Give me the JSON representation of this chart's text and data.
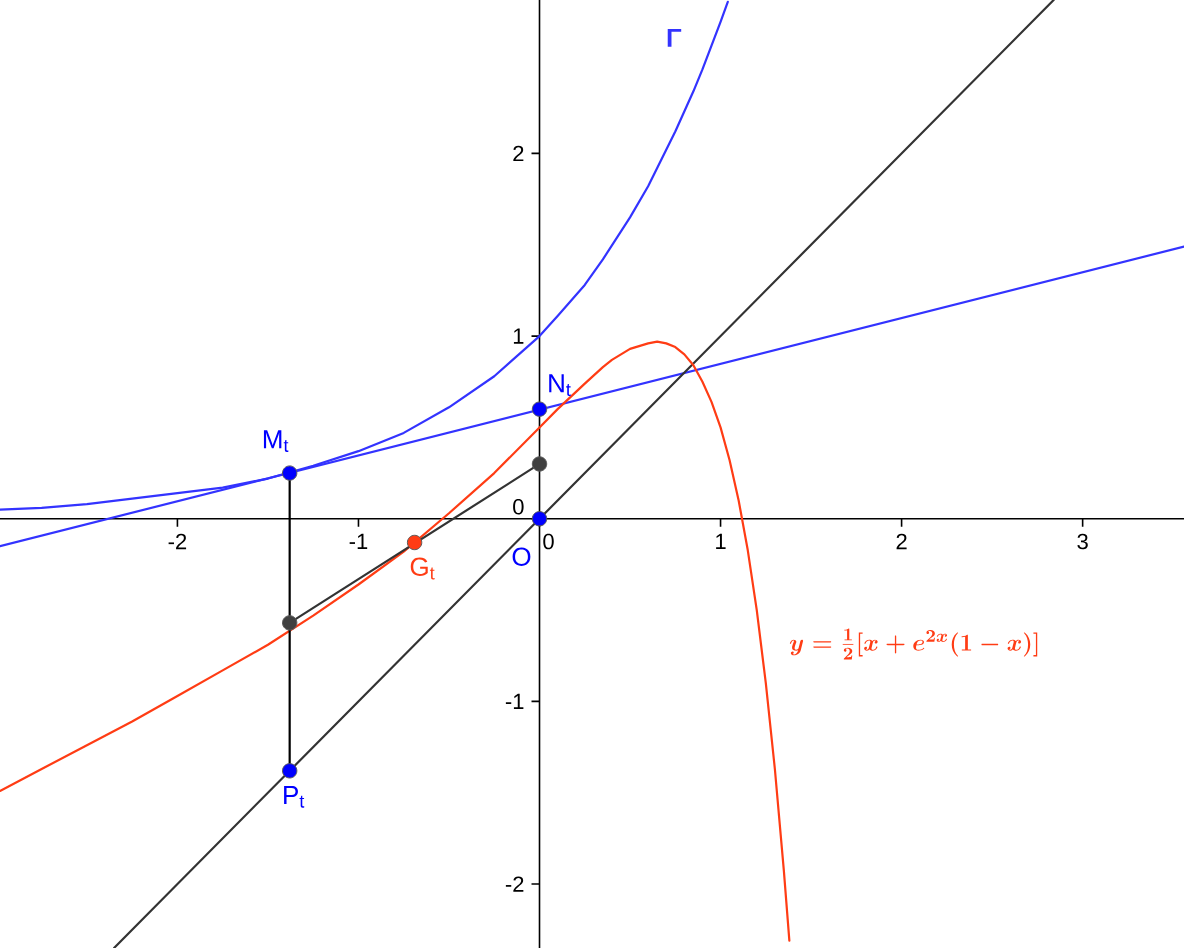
{
  "chart_data": {
    "type": "line",
    "xlim": [
      -2.98,
      3.56
    ],
    "ylim": [
      -2.35,
      2.84
    ],
    "xticks": [
      -2,
      -1,
      0,
      1,
      2,
      3
    ],
    "yticks": [
      -2,
      -1,
      0,
      1,
      2
    ],
    "marker": "none",
    "series": [
      {
        "name": "Γ",
        "color": "#3333ff",
        "x": [
          -2.98,
          -2.75,
          -2.5,
          -2.25,
          -2,
          -1.75,
          -1.5,
          -1.25,
          -1,
          -0.75,
          -0.5,
          -0.25,
          0,
          0.1,
          0.25,
          0.35,
          0.5,
          0.6,
          0.65,
          0.75,
          0.85,
          0.9,
          0.95,
          1,
          1.04
        ],
        "values": [
          0.05,
          0.06,
          0.08,
          0.11,
          0.14,
          0.17,
          0.22,
          0.29,
          0.37,
          0.47,
          0.61,
          0.78,
          1,
          1.11,
          1.28,
          1.42,
          1.65,
          1.82,
          1.92,
          2.12,
          2.34,
          2.46,
          2.59,
          2.72,
          2.83
        ]
      },
      {
        "color": "#3333ff",
        "x": [
          -2.98,
          3.56
        ],
        "values": [
          -0.15,
          1.49
        ]
      },
      {
        "color": "#333333",
        "x": [
          -2.35,
          2.84
        ],
        "values": [
          -2.35,
          2.84
        ]
      },
      {
        "name": "y=\\frac{1}{2}[x+e^{2x}(1-x)]",
        "color": "#ff3c14",
        "x": [
          -2.98,
          -2.75,
          -2.5,
          -2.25,
          -2,
          -1.75,
          -1.5,
          -1.25,
          -1,
          -0.75,
          -0.5,
          -0.25,
          0,
          0.1,
          0.25,
          0.35,
          0.4,
          0.5,
          0.6,
          0.65,
          0.7,
          0.75,
          0.8,
          0.85,
          0.9,
          0.95,
          1,
          1.05,
          1.1,
          1.15,
          1.2,
          1.25,
          1.3,
          1.35,
          1.38
        ],
        "values": [
          -1.49,
          -1.37,
          -1.24,
          -1.11,
          -0.97,
          -0.83,
          -0.69,
          -0.53,
          -0.36,
          -0.18,
          0.03,
          0.25,
          0.5,
          0.6,
          0.74,
          0.83,
          0.87,
          0.93,
          0.96,
          0.97,
          0.96,
          0.94,
          0.9,
          0.84,
          0.75,
          0.64,
          0.5,
          0.32,
          0.1,
          -0.17,
          -0.5,
          -0.9,
          -1.37,
          -1.93,
          -2.31
        ]
      },
      {
        "color": "#000000",
        "x": [
          -1.38,
          -1.38
        ],
        "values": [
          0.25,
          -1.38
        ]
      },
      {
        "color": "#333333",
        "x": [
          -1.38,
          0
        ],
        "values": [
          -0.57,
          0.3
        ]
      },
      {
        "type": "scatter",
        "marker": "circle",
        "name": "M$_{t}$",
        "color": "#0000ff",
        "x": [
          -1.38
        ],
        "values": [
          0.25
        ]
      },
      {
        "type": "scatter",
        "marker": "circle",
        "name": "N$_{t}$",
        "color": "#0000ff",
        "x": [
          0
        ],
        "values": [
          0.6
        ]
      },
      {
        "type": "scatter",
        "marker": "circle",
        "name": "P$_{t}$",
        "color": "#0000ff",
        "x": [
          -1.38
        ],
        "values": [
          -1.38
        ]
      },
      {
        "type": "scatter",
        "marker": "circle",
        "name": "O",
        "color": "#0000ff",
        "x": [
          0
        ],
        "values": [
          0
        ]
      },
      {
        "type": "scatter",
        "marker": "circle",
        "name": "G$_{t}$",
        "color": "#ff3c14",
        "x": [
          -0.69
        ],
        "values": [
          -0.13
        ]
      },
      {
        "type": "scatter",
        "marker": "circle",
        "color": "#404040",
        "x": [
          -1.38,
          0
        ],
        "values": [
          -0.57,
          0.3
        ]
      }
    ]
  }
}
